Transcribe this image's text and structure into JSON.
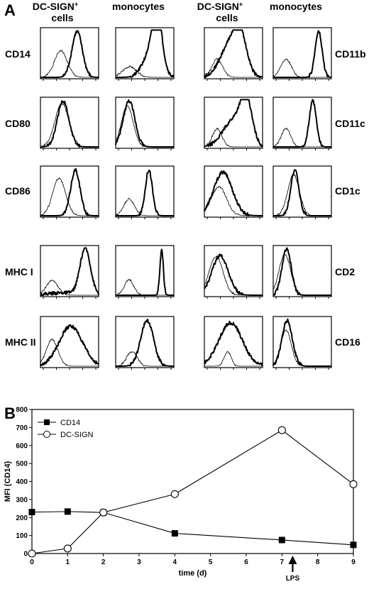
{
  "panel_a": {
    "letter": "A",
    "column_headers": [
      {
        "line1": "DC-SIGN",
        "sup": "+",
        "line2": "cells"
      },
      {
        "line1": "monocytes",
        "sup": "",
        "line2": ""
      },
      {
        "line1": "DC-SIGN",
        "sup": "+",
        "line2": "cells"
      },
      {
        "line1": "monocytes",
        "sup": "",
        "line2": ""
      }
    ],
    "left_row_labels": [
      "CD14",
      "CD80",
      "CD86",
      "MHC I",
      "MHC II"
    ],
    "right_row_labels": [
      "CD11b",
      "CD11c",
      "CD1c",
      "CD2",
      "CD16"
    ]
  },
  "panel_b": {
    "letter": "B",
    "arrow_label": "LPS",
    "arrow_x": 7.3
  },
  "chart_data": [
    {
      "type": "histogram-grid",
      "description_rows_left": [
        "CD14",
        "CD80",
        "CD86",
        "MHC I",
        "MHC II"
      ],
      "description_rows_right": [
        "CD11b",
        "CD11c",
        "CD1c",
        "CD2",
        "CD16"
      ],
      "grid": [
        [
          {
            "thin": [
              [
                0.35,
                0.11,
                0.55
              ]
            ],
            "thick": [
              [
                0.63,
                0.09,
                0.95
              ]
            ]
          },
          {
            "thin": [
              [
                0.24,
                0.12,
                0.22
              ]
            ],
            "thick": [
              [
                0.62,
                0.14,
                0.55
              ],
              [
                0.72,
                0.08,
                0.95
              ]
            ]
          },
          {
            "thin": [
              [
                0.22,
                0.09,
                0.38
              ]
            ],
            "thick": [
              [
                0.47,
                0.18,
                0.75
              ],
              [
                0.62,
                0.1,
                0.55
              ]
            ]
          },
          {
            "thin": [
              [
                0.22,
                0.09,
                0.38
              ]
            ],
            "thick": [
              [
                0.78,
                0.06,
                0.95
              ]
            ]
          }
        ],
        [
          {
            "thin": [
              [
                0.37,
                0.12,
                0.9
              ]
            ],
            "thick": [
              [
                0.39,
                0.1,
                0.95
              ]
            ]
          },
          {
            "thin": [
              [
                0.2,
                0.1,
                0.85
              ]
            ],
            "thick": [
              [
                0.23,
                0.1,
                0.95
              ]
            ]
          },
          {
            "thin": [
              [
                0.22,
                0.08,
                0.38
              ]
            ],
            "thick": [
              [
                0.5,
                0.18,
                0.55
              ],
              [
                0.72,
                0.1,
                0.85
              ]
            ]
          },
          {
            "thin": [
              [
                0.22,
                0.08,
                0.38
              ]
            ],
            "thick": [
              [
                0.68,
                0.06,
                0.95
              ]
            ]
          }
        ],
        [
          {
            "thin": [
              [
                0.32,
                0.11,
                0.78
              ]
            ],
            "thick": [
              [
                0.6,
                0.08,
                0.95
              ]
            ]
          },
          {
            "thin": [
              [
                0.23,
                0.09,
                0.35
              ]
            ],
            "thick": [
              [
                0.57,
                0.06,
                0.95
              ]
            ]
          },
          {
            "thin": [
              [
                0.25,
                0.13,
                0.6
              ]
            ],
            "thick": [
              [
                0.32,
                0.16,
                0.9
              ]
            ]
          },
          {
            "thin": [
              [
                0.35,
                0.1,
                0.85
              ]
            ],
            "thick": [
              [
                0.37,
                0.07,
                0.95
              ]
            ]
          }
        ],
        [
          {
            "thin": [
              [
                0.2,
                0.1,
                0.3
              ]
            ],
            "thick": [
              [
                0.77,
                0.09,
                0.95
              ],
              [
                0.4,
                0.3,
                0.05
              ]
            ]
          },
          {
            "thin": [
              [
                0.23,
                0.08,
                0.32
              ]
            ],
            "thick": [
              [
                0.79,
                0.03,
                0.95
              ]
            ]
          },
          {
            "thin": [
              [
                0.2,
                0.12,
                0.8
              ]
            ],
            "thick": [
              [
                0.27,
                0.14,
                0.82
              ]
            ]
          },
          {
            "thin": [
              [
                0.2,
                0.1,
                0.85
              ]
            ],
            "thick": [
              [
                0.23,
                0.08,
                0.95
              ]
            ]
          }
        ],
        [
          {
            "thin": [
              [
                0.2,
                0.1,
                0.55
              ]
            ],
            "thick": [
              [
                0.52,
                0.2,
                0.83
              ]
            ]
          },
          {
            "thin": [
              [
                0.28,
                0.09,
                0.3
              ]
            ],
            "thick": [
              [
                0.54,
                0.11,
                0.95
              ]
            ]
          },
          {
            "thin": [
              [
                0.4,
                0.06,
                0.3
              ]
            ],
            "thick": [
              [
                0.45,
                0.2,
                0.9
              ]
            ]
          },
          {
            "thin": [
              [
                0.22,
                0.09,
                0.75
              ]
            ],
            "thick": [
              [
                0.24,
                0.09,
                0.95
              ]
            ]
          }
        ]
      ]
    },
    {
      "type": "line",
      "xlabel": "time (d)",
      "ylabel": "MFI (CD14)",
      "xlim": [
        0,
        9
      ],
      "ylim": [
        0,
        800
      ],
      "xticks": [
        0,
        1,
        2,
        3,
        4,
        5,
        6,
        7,
        8,
        9
      ],
      "yticks": [
        0,
        100,
        200,
        300,
        400,
        500,
        600,
        700,
        800
      ],
      "legend_position": "top-left",
      "series": [
        {
          "name": "CD14",
          "marker": "filled-square",
          "x": [
            0,
            1,
            2,
            4,
            7,
            9
          ],
          "y": [
            230,
            233,
            228,
            112,
            75,
            48
          ]
        },
        {
          "name": "DC-SIGN",
          "marker": "open-circle",
          "x": [
            0,
            1,
            2,
            4,
            7,
            9
          ],
          "y": [
            0,
            28,
            228,
            330,
            685,
            385
          ]
        }
      ]
    }
  ]
}
